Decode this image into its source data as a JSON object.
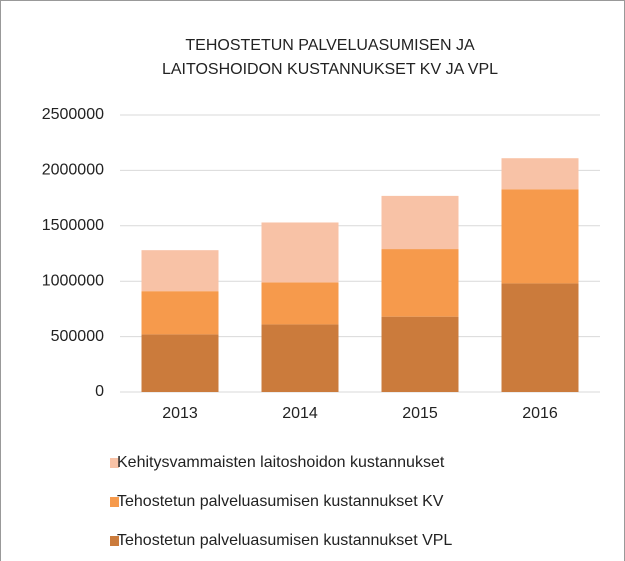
{
  "chart_data": {
    "type": "stacked_bar",
    "title": [
      "TEHOSTETUN  PALVELUASUMISEN  JA",
      "LAITOSHOIDON  KUSTANNUKSET  KV JA VPL"
    ],
    "categories": [
      "2013",
      "2014",
      "2015",
      "2016"
    ],
    "series": [
      {
        "name": "Tehostetun palveluasumisen kustannukset VPL",
        "color": "#cb7b3c",
        "values": [
          520000,
          610000,
          680000,
          980000
        ]
      },
      {
        "name": "Tehostetun palveluasumisen kustannukset KV",
        "color": "#f69a4c",
        "values": [
          390000,
          380000,
          610000,
          850000
        ]
      },
      {
        "name": "Kehitysvammaisten laitoshoidon kustannukset",
        "color": "#f8c2a6",
        "values": [
          370000,
          540000,
          480000,
          280000
        ]
      }
    ],
    "ylim": [
      0,
      2500000
    ],
    "yticks": [
      0,
      500000,
      1000000,
      1500000,
      2000000,
      2500000
    ],
    "grid": true
  }
}
